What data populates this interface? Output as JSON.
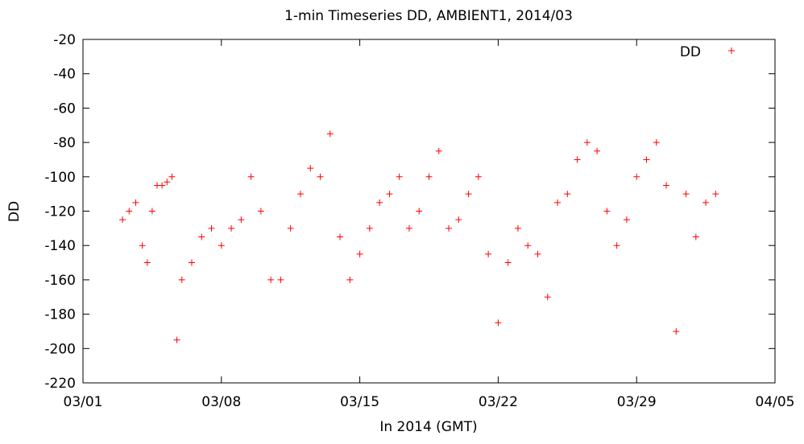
{
  "chart_data": {
    "type": "scatter",
    "title": "1-min Timeseries DD, AMBIENT1, 2014/03",
    "xlabel": "In 2014 (GMT)",
    "ylabel": "DD",
    "xlim": [
      "2014-03-01",
      "2014-04-05"
    ],
    "ylim": [
      -220,
      -20
    ],
    "x_ticks": [
      "03/01",
      "03/08",
      "03/15",
      "03/22",
      "03/29",
      "04/05"
    ],
    "y_ticks": [
      -20,
      -40,
      -60,
      -80,
      -100,
      -120,
      -140,
      -160,
      -180,
      -200,
      -220
    ],
    "grid": false,
    "legend": "top-right",
    "series": [
      {
        "name": "DD",
        "color": "#ff0000",
        "marker": "plus",
        "x": [
          "2014-03-03T00:00",
          "2014-03-03T08:00",
          "2014-03-03T16:00",
          "2014-03-04T00:00",
          "2014-03-04T06:00",
          "2014-03-04T12:00",
          "2014-03-04T18:00",
          "2014-03-05T00:00",
          "2014-03-05T06:00",
          "2014-03-05T12:00",
          "2014-03-05T18:00",
          "2014-03-06T00:00",
          "2014-03-06T12:00",
          "2014-03-07T00:00",
          "2014-03-07T12:00",
          "2014-03-08T00:00",
          "2014-03-08T12:00",
          "2014-03-09T00:00",
          "2014-03-09T12:00",
          "2014-03-10T00:00",
          "2014-03-10T12:00",
          "2014-03-11T00:00",
          "2014-03-11T12:00",
          "2014-03-12T00:00",
          "2014-03-12T12:00",
          "2014-03-13T00:00",
          "2014-03-13T12:00",
          "2014-03-14T00:00",
          "2014-03-14T12:00",
          "2014-03-15T00:00",
          "2014-03-15T12:00",
          "2014-03-16T00:00",
          "2014-03-16T12:00",
          "2014-03-17T00:00",
          "2014-03-17T12:00",
          "2014-03-18T00:00",
          "2014-03-18T12:00",
          "2014-03-19T00:00",
          "2014-03-19T12:00",
          "2014-03-20T00:00",
          "2014-03-20T12:00",
          "2014-03-21T00:00",
          "2014-03-21T12:00",
          "2014-03-22T00:00",
          "2014-03-22T12:00",
          "2014-03-23T00:00",
          "2014-03-23T12:00",
          "2014-03-24T00:00",
          "2014-03-24T12:00",
          "2014-03-25T00:00",
          "2014-03-25T12:00",
          "2014-03-26T00:00",
          "2014-03-26T12:00",
          "2014-03-27T00:00",
          "2014-03-27T12:00",
          "2014-03-28T00:00",
          "2014-03-28T12:00",
          "2014-03-29T00:00",
          "2014-03-29T12:00",
          "2014-03-30T00:00",
          "2014-03-30T12:00",
          "2014-03-31T00:00",
          "2014-03-31T12:00",
          "2014-04-01T00:00",
          "2014-04-01T12:00",
          "2014-04-02T00:00"
        ],
        "y": [
          -125,
          -120,
          -115,
          -140,
          -150,
          -120,
          -105,
          -105,
          -103,
          -100,
          -195,
          -160,
          -150,
          -135,
          -130,
          -140,
          -130,
          -125,
          -100,
          -120,
          -160,
          -160,
          -130,
          -110,
          -95,
          -100,
          -75,
          -135,
          -160,
          -145,
          -130,
          -115,
          -110,
          -100,
          -130,
          -120,
          -100,
          -85,
          -130,
          -125,
          -110,
          -100,
          -145,
          -185,
          -150,
          -130,
          -140,
          -145,
          -170,
          -115,
          -110,
          -90,
          -80,
          -85,
          -120,
          -140,
          -125,
          -100,
          -90,
          -80,
          -105,
          -190,
          -110,
          -135,
          -115,
          -110
        ]
      }
    ]
  }
}
